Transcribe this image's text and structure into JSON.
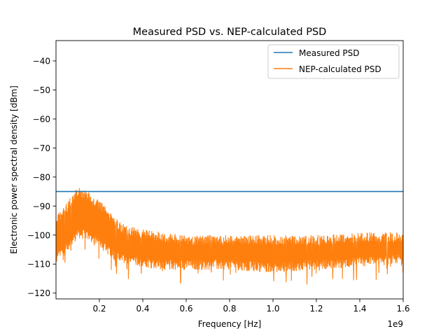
{
  "chart_data": {
    "type": "line",
    "title": "Measured PSD vs. NEP-calculated PSD",
    "xlabel": "Frequency [Hz]",
    "ylabel": "Electronic power spectral density [dBm]",
    "x_offset_label": "1e9",
    "xlim": [
      0.0,
      1.6
    ],
    "ylim": [
      -122,
      -33
    ],
    "x_ticks": [
      0.2,
      0.4,
      0.6,
      0.8,
      1.0,
      1.2,
      1.4,
      1.6
    ],
    "x_tick_labels": [
      "0.2",
      "0.4",
      "0.6",
      "0.8",
      "1.0",
      "1.2",
      "1.4",
      "1.6"
    ],
    "y_ticks": [
      -40,
      -50,
      -60,
      -70,
      -80,
      -90,
      -100,
      -110,
      -120
    ],
    "y_tick_labels": [
      "−40",
      "−50",
      "−60",
      "−70",
      "−80",
      "−90",
      "−100",
      "−110",
      "−120"
    ],
    "legend_position": "top-right",
    "grid": false,
    "series": [
      {
        "name": "Measured PSD",
        "color": "#1f77b4",
        "style": "constant",
        "x": [
          0.0,
          1.6
        ],
        "y": [
          -85,
          -85
        ]
      },
      {
        "name": "NEP-calculated PSD",
        "color": "#ff7f0e",
        "style": "noise-band",
        "x": [
          0.0,
          0.05,
          0.1,
          0.15,
          0.2,
          0.25,
          0.3,
          0.4,
          0.5,
          0.6,
          0.8,
          1.0,
          1.2,
          1.4,
          1.6
        ],
        "upper": [
          -93,
          -89,
          -83,
          -85,
          -88,
          -92,
          -96,
          -98,
          -99,
          -100,
          -100,
          -100,
          -100,
          -99,
          -99
        ],
        "lower": [
          -110,
          -106,
          -101,
          -102,
          -104,
          -108,
          -110,
          -111,
          -112,
          -112,
          -112,
          -113,
          -112,
          -111,
          -110
        ]
      }
    ]
  }
}
